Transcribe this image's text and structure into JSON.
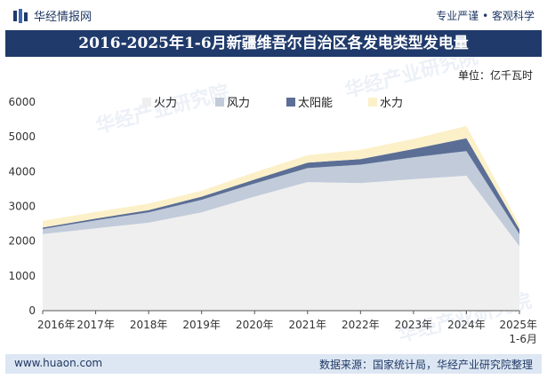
{
  "header": {
    "brand": "华经情报网",
    "slogan": "专业严谨 • 客观科学"
  },
  "title": "2016-2025年1-6月新疆维吾尔自治区各发电类型发电量",
  "unit": "单位：亿千瓦时",
  "footer": {
    "website": "www.huaon.com",
    "source": "数据来源：国家统计局，华经产业研究院整理"
  },
  "watermark": "华经产业研究院",
  "colors": {
    "thermal": "#efefef",
    "wind": "#c2cbda",
    "solar": "#5b6e95",
    "hydro": "#fcf0c8"
  },
  "chart_data": {
    "type": "area",
    "stacked": true,
    "categories": [
      "2016年",
      "2017年",
      "2018年",
      "2019年",
      "2020年",
      "2021年",
      "2022年",
      "2023年",
      "2024年",
      "2025年 1-6月"
    ],
    "series": [
      {
        "name": "火力",
        "values": [
          2200,
          2370,
          2530,
          2830,
          3280,
          3700,
          3670,
          3780,
          3880,
          1850
        ]
      },
      {
        "name": "风力",
        "values": [
          150,
          230,
          300,
          360,
          380,
          400,
          530,
          630,
          710,
          350
        ]
      },
      {
        "name": "太阳能",
        "values": [
          40,
          50,
          60,
          90,
          110,
          160,
          160,
          240,
          370,
          140
        ]
      },
      {
        "name": "水力",
        "values": [
          190,
          190,
          190,
          170,
          210,
          210,
          270,
          290,
          350,
          130
        ]
      }
    ],
    "yticks": [
      0,
      1000,
      2000,
      3000,
      4000,
      5000,
      6000
    ],
    "ylim": [
      0,
      6000
    ],
    "legend": "top-center",
    "grid": false
  }
}
